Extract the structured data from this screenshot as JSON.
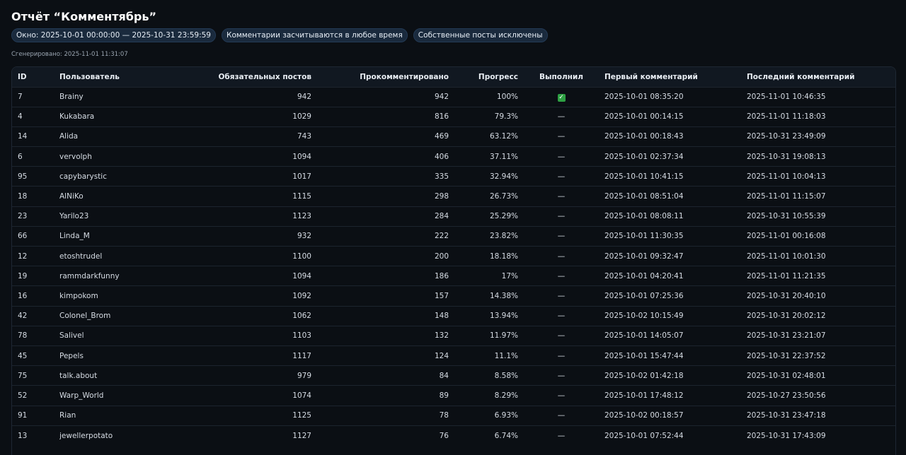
{
  "report": {
    "title": "Отчёт “Комментябрь”",
    "chips": [
      "Окно: 2025-10-01 00:00:00 — 2025-10-31 23:59:59",
      "Комментарии засчитываются в любое время",
      "Собственные посты исключены"
    ],
    "generated": "Сгенерировано: 2025-11-01 11:31:07"
  },
  "table": {
    "headers": {
      "id": "ID",
      "user": "Пользователь",
      "required": "Обязательных постов",
      "commented": "Прокомментировано",
      "progress": "Прогресс",
      "done": "Выполнил",
      "first": "Первый комментарий",
      "last": "Последний комментарий"
    },
    "rows": [
      {
        "id": "7",
        "user": "Brainy",
        "required": "942",
        "commented": "942",
        "progress": "100%",
        "done": "✓",
        "first": "2025-10-01 08:35:20",
        "last": "2025-11-01 10:46:35"
      },
      {
        "id": "4",
        "user": "Kukabara",
        "required": "1029",
        "commented": "816",
        "progress": "79.3%",
        "done": "—",
        "first": "2025-10-01 00:14:15",
        "last": "2025-11-01 11:18:03"
      },
      {
        "id": "14",
        "user": "Alida",
        "required": "743",
        "commented": "469",
        "progress": "63.12%",
        "done": "—",
        "first": "2025-10-01 00:18:43",
        "last": "2025-10-31 23:49:09"
      },
      {
        "id": "6",
        "user": "vervolph",
        "required": "1094",
        "commented": "406",
        "progress": "37.11%",
        "done": "—",
        "first": "2025-10-01 02:37:34",
        "last": "2025-10-31 19:08:13"
      },
      {
        "id": "95",
        "user": "capybarystic",
        "required": "1017",
        "commented": "335",
        "progress": "32.94%",
        "done": "—",
        "first": "2025-10-01 10:41:15",
        "last": "2025-11-01 10:04:13"
      },
      {
        "id": "18",
        "user": "AlNiKo",
        "required": "1115",
        "commented": "298",
        "progress": "26.73%",
        "done": "—",
        "first": "2025-10-01 08:51:04",
        "last": "2025-11-01 11:15:07"
      },
      {
        "id": "23",
        "user": "Yarilo23",
        "required": "1123",
        "commented": "284",
        "progress": "25.29%",
        "done": "—",
        "first": "2025-10-01 08:08:11",
        "last": "2025-10-31 10:55:39"
      },
      {
        "id": "66",
        "user": "Linda_M",
        "required": "932",
        "commented": "222",
        "progress": "23.82%",
        "done": "—",
        "first": "2025-10-01 11:30:35",
        "last": "2025-11-01 00:16:08"
      },
      {
        "id": "12",
        "user": "etoshtrudel",
        "required": "1100",
        "commented": "200",
        "progress": "18.18%",
        "done": "—",
        "first": "2025-10-01 09:32:47",
        "last": "2025-11-01 10:01:30"
      },
      {
        "id": "19",
        "user": "rammdarkfunny",
        "required": "1094",
        "commented": "186",
        "progress": "17%",
        "done": "—",
        "first": "2025-10-01 04:20:41",
        "last": "2025-11-01 11:21:35"
      },
      {
        "id": "16",
        "user": "kimpokom",
        "required": "1092",
        "commented": "157",
        "progress": "14.38%",
        "done": "—",
        "first": "2025-10-01 07:25:36",
        "last": "2025-10-31 20:40:10"
      },
      {
        "id": "42",
        "user": "Colonel_Brom",
        "required": "1062",
        "commented": "148",
        "progress": "13.94%",
        "done": "—",
        "first": "2025-10-02 10:15:49",
        "last": "2025-10-31 20:02:12"
      },
      {
        "id": "78",
        "user": "Salivel",
        "required": "1103",
        "commented": "132",
        "progress": "11.97%",
        "done": "—",
        "first": "2025-10-01 14:05:07",
        "last": "2025-10-31 23:21:07"
      },
      {
        "id": "45",
        "user": "Pepels",
        "required": "1117",
        "commented": "124",
        "progress": "11.1%",
        "done": "—",
        "first": "2025-10-01 15:47:44",
        "last": "2025-10-31 22:37:52"
      },
      {
        "id": "75",
        "user": "talk.about",
        "required": "979",
        "commented": "84",
        "progress": "8.58%",
        "done": "—",
        "first": "2025-10-02 01:42:18",
        "last": "2025-10-31 02:48:01"
      },
      {
        "id": "52",
        "user": "Warp_World",
        "required": "1074",
        "commented": "89",
        "progress": "8.29%",
        "done": "—",
        "first": "2025-10-01 17:48:12",
        "last": "2025-10-27 23:50:56"
      },
      {
        "id": "91",
        "user": "Rian",
        "required": "1125",
        "commented": "78",
        "progress": "6.93%",
        "done": "—",
        "first": "2025-10-02 00:18:57",
        "last": "2025-10-31 23:47:18"
      },
      {
        "id": "13",
        "user": "jewellerpotato",
        "required": "1127",
        "commented": "76",
        "progress": "6.74%",
        "done": "—",
        "first": "2025-10-01 07:52:44",
        "last": "2025-10-31 17:43:09"
      }
    ]
  }
}
